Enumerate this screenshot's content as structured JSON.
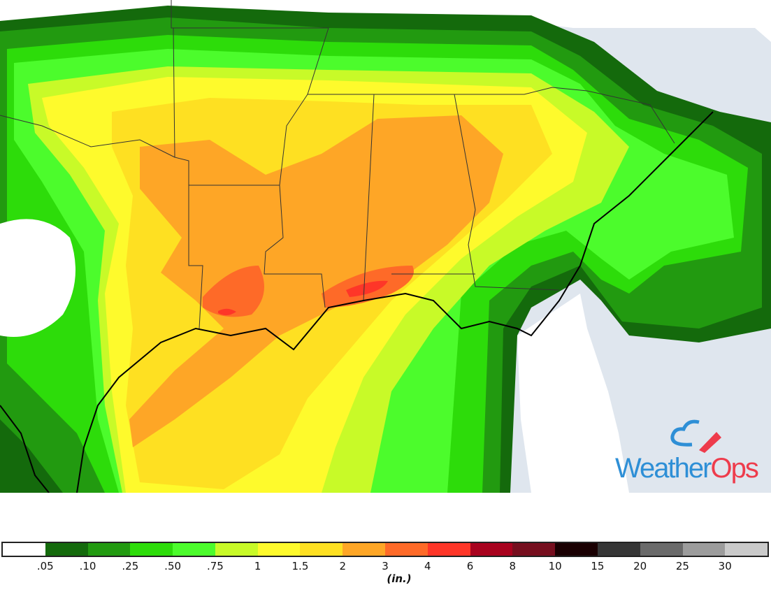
{
  "map": {
    "ocean_color": "#dfe6ee",
    "land_no_data_color": "#ffffff",
    "boundary_color": "#000000"
  },
  "legend": {
    "colors": [
      "#ffffff",
      "#146a0c",
      "#229a10",
      "#2ddc0a",
      "#4cfc2c",
      "#c8fa28",
      "#fefa2c",
      "#fee022",
      "#fea626",
      "#fe6a28",
      "#fe3628",
      "#a8021e",
      "#760e1e",
      "#1a0002",
      "#363636",
      "#6a6a6a",
      "#9c9c9c",
      "#cacaca"
    ],
    "ticks": [
      ".05",
      ".10",
      ".25",
      ".50",
      ".75",
      "1",
      "1.5",
      "2",
      "3",
      "4",
      "6",
      "8",
      "10",
      "15",
      "20",
      "25",
      "30"
    ],
    "unit": "(in.)"
  },
  "logo": {
    "text_part1": "Weather",
    "text_part2": "Ops",
    "blue": "#2e8fd6",
    "red": "#ee3c4c"
  }
}
